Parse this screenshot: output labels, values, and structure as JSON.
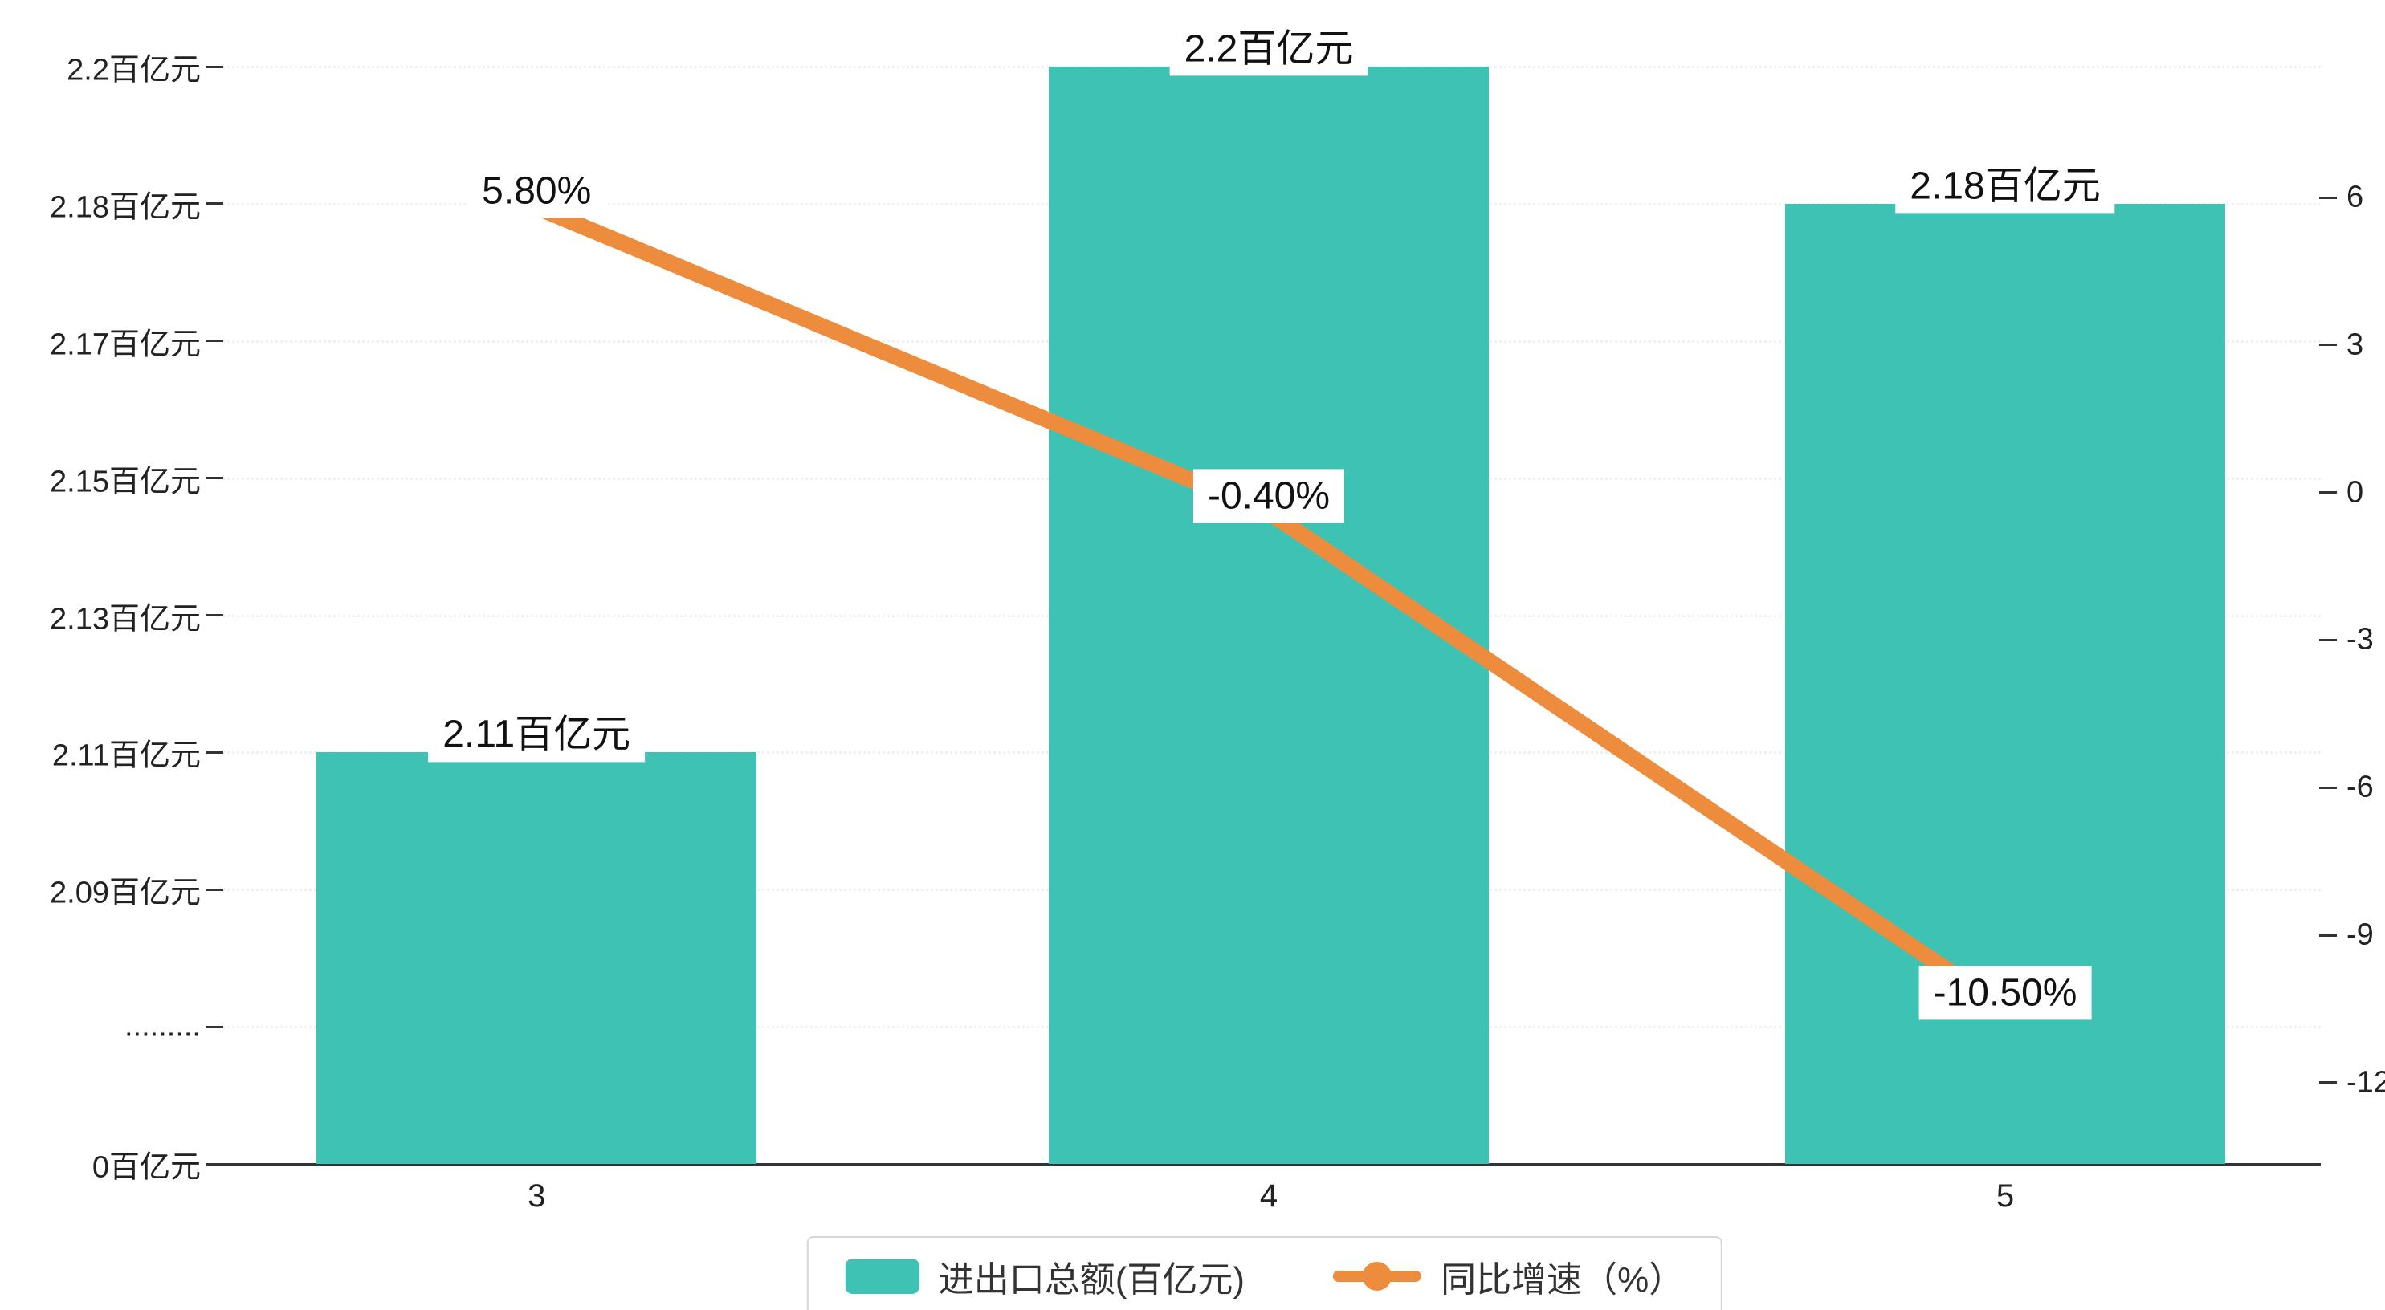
{
  "chart_data": {
    "type": "bar",
    "combo": "bar+line",
    "categories": [
      "3",
      "4",
      "5"
    ],
    "series": [
      {
        "name": "进出口总额(百亿元)",
        "type": "bar",
        "values": [
          2.11,
          2.2,
          2.18
        ],
        "labels": [
          "2.11百亿元",
          "2.2百亿元",
          "2.18百亿元"
        ],
        "axis": "left"
      },
      {
        "name": "同比增速（%）",
        "type": "line",
        "values": [
          5.8,
          -0.4,
          -10.5
        ],
        "labels": [
          "5.80%",
          "-0.40%",
          "-10.50%"
        ],
        "axis": "right"
      }
    ],
    "left_axis": {
      "ticks": [
        "2.2百亿元",
        "2.18百亿元",
        "2.17百亿元",
        "2.15百亿元",
        "2.13百亿元",
        "2.11百亿元",
        "2.09百亿元",
        ".........",
        "0百亿元"
      ]
    },
    "right_axis": {
      "ticks": [
        "6",
        "3",
        "0",
        "-3",
        "-6",
        "-9",
        "-12"
      ],
      "max": 6,
      "min": -12,
      "step": 3
    },
    "x_axis": {
      "labels": [
        "3",
        "4",
        "5"
      ]
    },
    "legend": [
      {
        "label": "进出口总额(百亿元)",
        "marker": "bar-swatch"
      },
      {
        "label": "同比增速（%）",
        "marker": "line-with-dot"
      }
    ],
    "legend_position": "bottom-center",
    "grid": "faint-dotted-horizontal",
    "title": ""
  },
  "colors": {
    "bar": "#3ec2b3",
    "line": "#ec8c3c",
    "axis": "#333333",
    "text": "#222222",
    "grid": "#f0f0f0",
    "label_bg": "#ffffff",
    "legend_border": "#d6d6d6"
  }
}
